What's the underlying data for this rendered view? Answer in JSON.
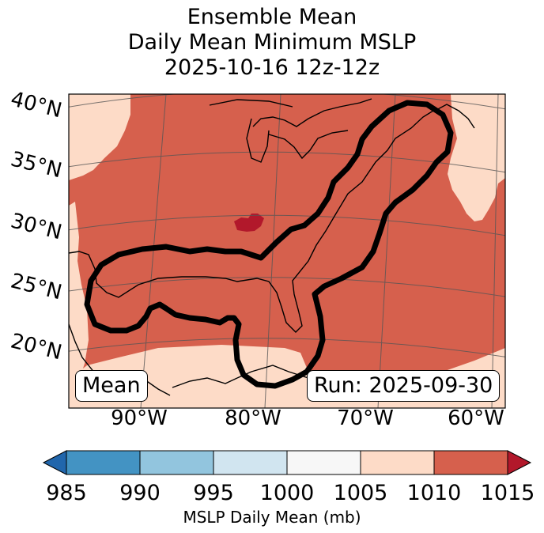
{
  "title": {
    "line1": "Ensemble Mean",
    "line2": "Daily Mean Minimum MSLP",
    "line3": "2025-10-16 12z-12z"
  },
  "map": {
    "lat_labels": [
      "40°N",
      "35°N",
      "30°N",
      "25°N",
      "20°N"
    ],
    "lon_labels": [
      "90°W",
      "80°W",
      "70°W",
      "60°W"
    ],
    "stat_box": "Mean",
    "run_box": "Run: 2025-09-30"
  },
  "colorbar": {
    "ticks": [
      "985",
      "990",
      "995",
      "1000",
      "1005",
      "1010",
      "1015"
    ],
    "label": "MSLP Daily Mean (mb)",
    "bins": [
      {
        "range": "<985",
        "color": "#2166ac"
      },
      {
        "range": "985-990",
        "color": "#4393c3"
      },
      {
        "range": "990-995",
        "color": "#92c5de"
      },
      {
        "range": "995-1000",
        "color": "#d1e5f0"
      },
      {
        "range": "1000-1005",
        "color": "#f7f7f7"
      },
      {
        "range": "1005-1010",
        "color": "#fddbc7"
      },
      {
        "range": "1010-1015",
        "color": "#d6604d"
      },
      {
        "range": ">1015",
        "color": "#b2182b"
      }
    ]
  }
}
